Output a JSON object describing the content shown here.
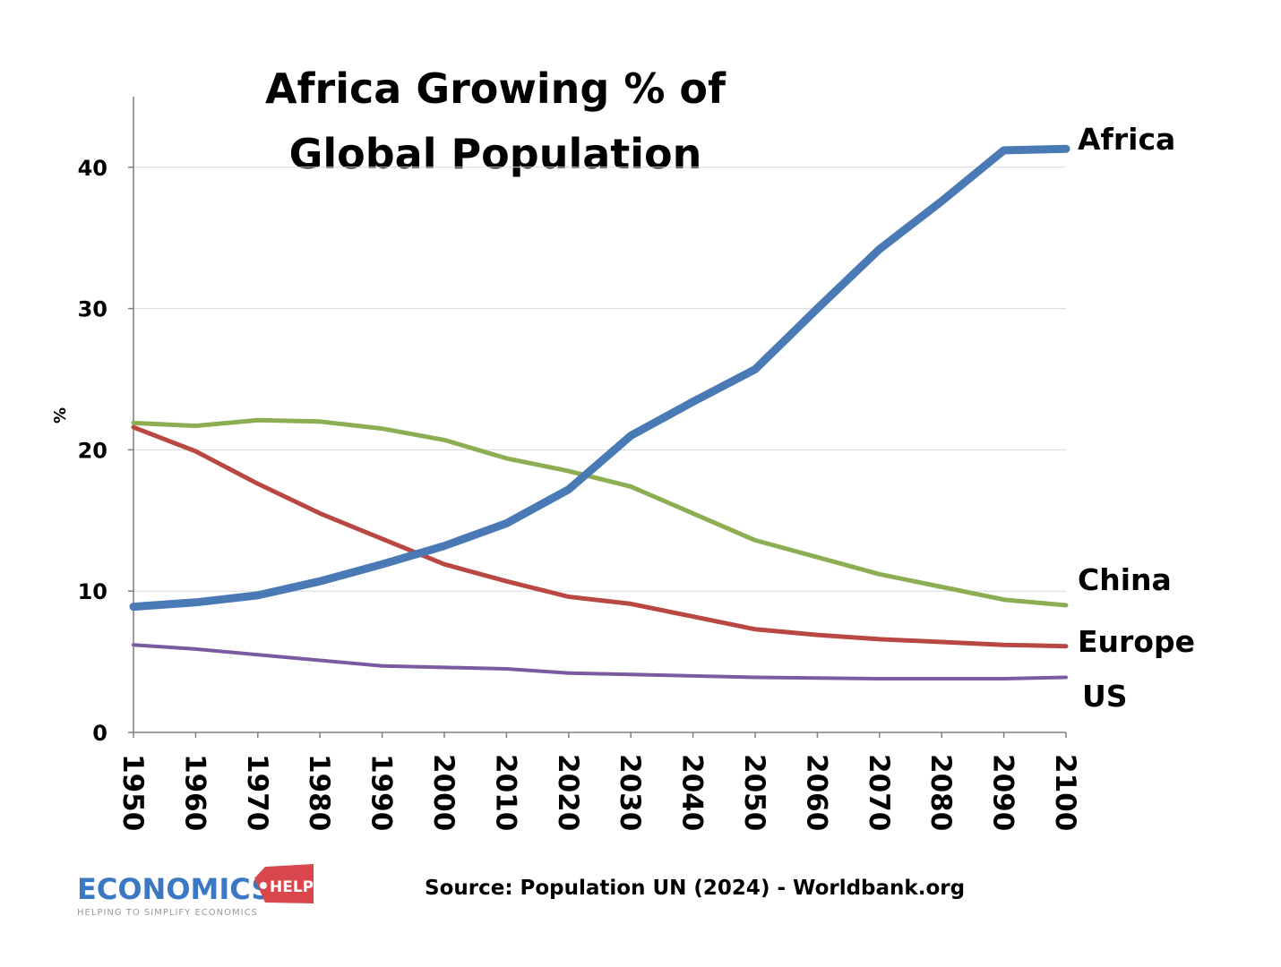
{
  "chart_data": {
    "type": "line",
    "title_lines": [
      "Africa Growing % of",
      "Global Population"
    ],
    "xlabel": "",
    "ylabel": "%",
    "ylim": [
      0,
      45
    ],
    "yticks": [
      0,
      10,
      20,
      30,
      40
    ],
    "grid": true,
    "legend": "line-end labels on right",
    "categories": [
      "1950",
      "1960",
      "1970",
      "1980",
      "1990",
      "2000",
      "2010",
      "2020",
      "2030",
      "2040",
      "2050",
      "2060",
      "2070",
      "2080",
      "2090",
      "2100"
    ],
    "series": [
      {
        "name": "Africa",
        "color": "#4a7ab5",
        "values": [
          8.9,
          9.2,
          9.7,
          10.7,
          11.9,
          13.2,
          14.8,
          17.2,
          21.0,
          23.4,
          25.7,
          30.0,
          34.2,
          37.6,
          41.2,
          41.3
        ]
      },
      {
        "name": "China",
        "color": "#8cae53",
        "values": [
          21.9,
          21.7,
          22.1,
          22.0,
          21.5,
          20.7,
          19.4,
          18.5,
          17.4,
          15.5,
          13.6,
          12.4,
          11.2,
          10.3,
          9.4,
          9.0
        ]
      },
      {
        "name": "Europe",
        "color": "#b94742",
        "values": [
          21.6,
          19.9,
          17.6,
          15.5,
          13.7,
          11.9,
          10.7,
          9.6,
          9.1,
          8.2,
          7.3,
          6.9,
          6.6,
          6.4,
          6.2,
          6.1
        ]
      },
      {
        "name": "US",
        "color": "#7a5b9f",
        "values": [
          6.2,
          5.9,
          5.5,
          5.1,
          4.7,
          4.6,
          4.5,
          4.2,
          4.1,
          4.0,
          3.9,
          3.85,
          3.8,
          3.8,
          3.8,
          3.9
        ]
      }
    ],
    "source": "Source: Population UN (2024) - Worldbank.org"
  },
  "logo": {
    "name": "ECONOMICS",
    "badge": "HELP",
    "tagline": "HELPING TO SIMPLIFY ECONOMICS"
  },
  "colors": {
    "grid": "#d9d9d9",
    "axis": "#7f7f7f",
    "logo_blue": "#3a78c3",
    "logo_red": "#d9474c",
    "logo_tagline": "#999999"
  }
}
